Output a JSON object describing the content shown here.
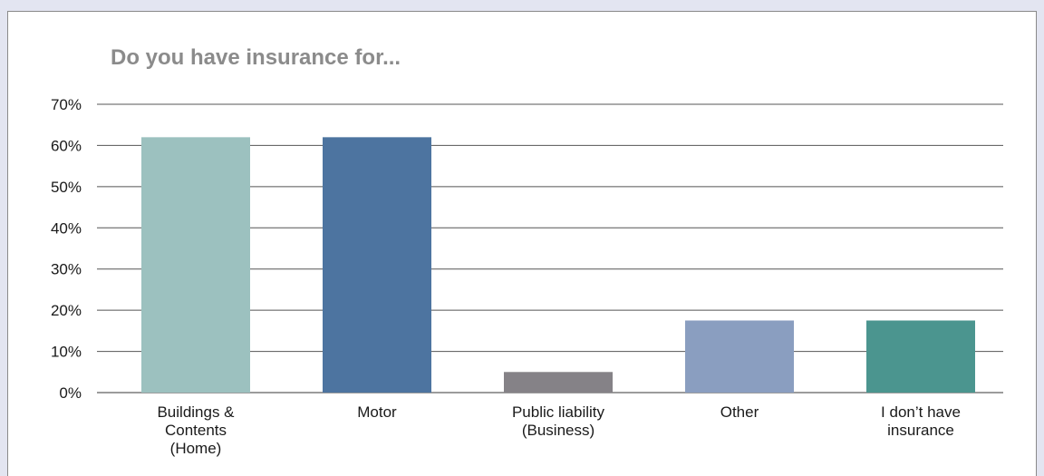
{
  "chart_data": {
    "type": "bar",
    "title": "Do you have insurance for...",
    "xlabel": "",
    "ylabel": "",
    "categories": [
      [
        "Buildings &",
        "Contents",
        "(Home)"
      ],
      [
        "Motor"
      ],
      [
        "Public liability",
        "(Business)"
      ],
      [
        "Other"
      ],
      [
        "I don’t have",
        "insurance"
      ]
    ],
    "values": [
      62,
      62,
      5,
      17.5,
      17.5
    ],
    "colors": [
      "#9cc1bf",
      "#4d74a0",
      "#858287",
      "#8a9ec0",
      "#4b958f"
    ],
    "ylim": [
      0,
      70
    ],
    "yticks": [
      0,
      10,
      20,
      30,
      40,
      50,
      60,
      70
    ],
    "ytick_labels": [
      "0%",
      "10%",
      "20%",
      "30%",
      "40%",
      "50%",
      "60%",
      "70%"
    ],
    "grid": true,
    "legend": "none"
  }
}
